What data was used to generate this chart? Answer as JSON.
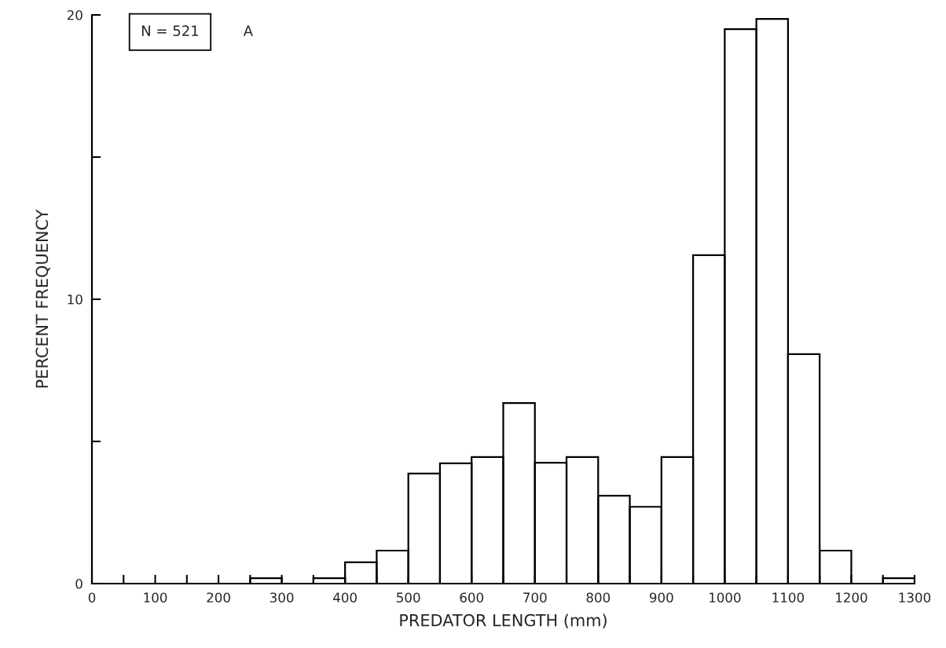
{
  "chart_data": {
    "type": "histogram",
    "xlabel": "PREDATOR LENGTH (mm)",
    "ylabel": "PERCENT FREQUENCY",
    "bins": [
      0,
      50,
      100,
      150,
      200,
      250,
      300,
      350,
      400,
      450,
      500,
      550,
      600,
      650,
      700,
      750,
      800,
      850,
      900,
      950,
      1000,
      1050,
      1100,
      1150,
      1200,
      1250,
      1300
    ],
    "values": [
      0,
      0,
      0,
      0,
      0,
      0.19,
      0,
      0.19,
      0.75,
      1.16,
      3.87,
      4.23,
      4.45,
      6.35,
      4.25,
      4.45,
      3.09,
      2.7,
      4.45,
      11.55,
      19.5,
      19.86,
      8.07,
      1.16,
      0,
      0.19
    ],
    "color": "#000000",
    "xlim": [
      0,
      1300
    ],
    "xticks": [
      0,
      {
        "value": 50,
        "label": null
      },
      100,
      {
        "value": 150,
        "label": null
      },
      200,
      {
        "value": 250,
        "label": null
      },
      300,
      {
        "value": 350,
        "label": null
      },
      400,
      {
        "value": 450,
        "label": null
      },
      500,
      {
        "value": 550,
        "label": null
      },
      600,
      {
        "value": 650,
        "label": null
      },
      700,
      {
        "value": 750,
        "label": null
      },
      800,
      {
        "value": 850,
        "label": null
      },
      900,
      {
        "value": 950,
        "label": null
      },
      1000,
      {
        "value": 1050,
        "label": null
      },
      1100,
      {
        "value": 1150,
        "label": null
      },
      1200,
      {
        "value": 1250,
        "label": null
      },
      1300
    ],
    "ylim": [
      0,
      20
    ],
    "yticks": [
      0,
      {
        "value": 5,
        "label": null
      },
      10,
      {
        "value": 15,
        "label": null
      },
      20
    ],
    "grid": false,
    "legend": false,
    "annotations": [
      "N = 521",
      "A"
    ]
  }
}
